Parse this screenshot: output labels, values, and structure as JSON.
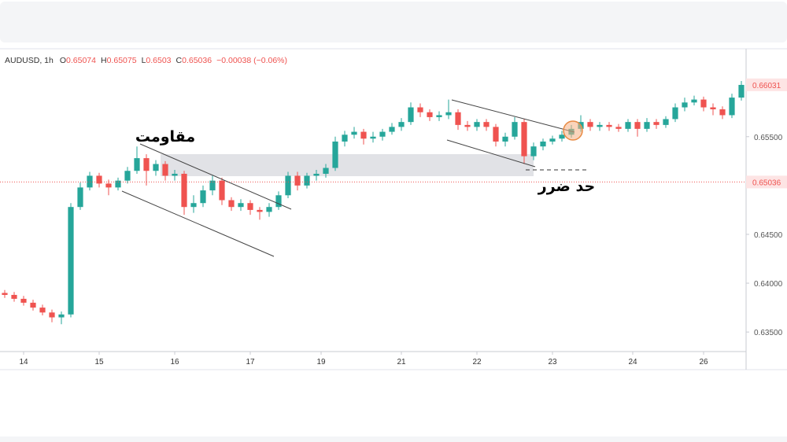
{
  "chart_data": {
    "type": "candlestick",
    "symbol": "AUDUSD, 1h",
    "ohlc_legend": [
      {
        "label": "O",
        "value": 0.65074
      },
      {
        "label": "H",
        "value": 0.65075
      },
      {
        "label": "L",
        "value": 0.6503
      },
      {
        "label": "C",
        "value": 0.65036
      }
    ],
    "change": "−0.00038 (−0.06%)",
    "up_color": "#26a69a",
    "down_color": "#ef5350",
    "open": [
      0.639,
      0.6388,
      0.6384,
      0.638,
      0.6375,
      0.637,
      0.6365,
      0.6368,
      0.6478,
      0.6498,
      0.651,
      0.6502,
      0.6498,
      0.6505,
      0.6515,
      0.6528,
      0.6515,
      0.6522,
      0.651,
      0.6512,
      0.6478,
      0.6482,
      0.6495,
      0.6505,
      0.6485,
      0.6478,
      0.6482,
      0.6475,
      0.6473,
      0.6478,
      0.649,
      0.651,
      0.65,
      0.651,
      0.6512,
      0.6518,
      0.6545,
      0.6552,
      0.6555,
      0.6548,
      0.655,
      0.6555,
      0.656,
      0.6565,
      0.658,
      0.6575,
      0.657,
      0.6572,
      0.6575,
      0.6562,
      0.656,
      0.6565,
      0.656,
      0.6545,
      0.655,
      0.6565,
      0.653,
      0.654,
      0.6545,
      0.6548,
      0.6552,
      0.6558,
      0.6565,
      0.656,
      0.6562,
      0.656,
      0.6558,
      0.6565,
      0.6558,
      0.6565,
      0.6562,
      0.6568,
      0.658,
      0.6585,
      0.6588,
      0.658,
      0.6578,
      0.6572,
      0.659
    ],
    "high": [
      0.6393,
      0.6391,
      0.6387,
      0.6383,
      0.6378,
      0.6373,
      0.6371,
      0.6482,
      0.6503,
      0.6514,
      0.6513,
      0.6506,
      0.6508,
      0.6519,
      0.654,
      0.6532,
      0.6526,
      0.6525,
      0.6516,
      0.6515,
      0.649,
      0.65,
      0.651,
      0.6508,
      0.6488,
      0.6486,
      0.6485,
      0.6478,
      0.6482,
      0.6494,
      0.6514,
      0.6514,
      0.6513,
      0.6516,
      0.6522,
      0.655,
      0.6556,
      0.656,
      0.6558,
      0.6555,
      0.6558,
      0.6564,
      0.6569,
      0.6585,
      0.6584,
      0.6578,
      0.6576,
      0.6588,
      0.6578,
      0.6566,
      0.6568,
      0.6568,
      0.6563,
      0.6554,
      0.657,
      0.6568,
      0.6544,
      0.6548,
      0.6551,
      0.6556,
      0.6562,
      0.6572,
      0.6568,
      0.6565,
      0.6565,
      0.6563,
      0.6568,
      0.6568,
      0.6569,
      0.6568,
      0.6571,
      0.6584,
      0.659,
      0.6592,
      0.6591,
      0.6584,
      0.6581,
      0.6594,
      0.6607
    ],
    "low": [
      0.6385,
      0.6381,
      0.6377,
      0.6372,
      0.6367,
      0.636,
      0.6358,
      0.6365,
      0.6475,
      0.6495,
      0.6498,
      0.649,
      0.6495,
      0.6502,
      0.6512,
      0.65,
      0.651,
      0.6505,
      0.6505,
      0.647,
      0.6472,
      0.6478,
      0.649,
      0.648,
      0.6474,
      0.6474,
      0.647,
      0.6465,
      0.6468,
      0.6475,
      0.6487,
      0.6495,
      0.6497,
      0.6505,
      0.6508,
      0.6515,
      0.654,
      0.6548,
      0.6542,
      0.6544,
      0.6546,
      0.6552,
      0.6556,
      0.6562,
      0.657,
      0.6566,
      0.6566,
      0.6568,
      0.6557,
      0.6556,
      0.6556,
      0.6556,
      0.654,
      0.654,
      0.6547,
      0.6522,
      0.6526,
      0.6536,
      0.6542,
      0.6545,
      0.6549,
      0.6555,
      0.6556,
      0.6556,
      0.6556,
      0.6555,
      0.6555,
      0.655,
      0.6555,
      0.6558,
      0.6559,
      0.6565,
      0.6576,
      0.6582,
      0.6576,
      0.6572,
      0.6568,
      0.6569,
      0.6587
    ],
    "close": [
      0.6388,
      0.6384,
      0.638,
      0.6375,
      0.637,
      0.6365,
      0.6368,
      0.6478,
      0.6498,
      0.651,
      0.6502,
      0.6498,
      0.6505,
      0.6515,
      0.6528,
      0.6515,
      0.6522,
      0.651,
      0.6512,
      0.6478,
      0.6482,
      0.6495,
      0.6505,
      0.6485,
      0.6478,
      0.6482,
      0.6475,
      0.6473,
      0.6478,
      0.649,
      0.651,
      0.65,
      0.651,
      0.6512,
      0.6518,
      0.6545,
      0.6552,
      0.6555,
      0.6548,
      0.655,
      0.6555,
      0.656,
      0.6565,
      0.658,
      0.6575,
      0.657,
      0.6572,
      0.6575,
      0.6562,
      0.656,
      0.6565,
      0.656,
      0.6545,
      0.655,
      0.6565,
      0.653,
      0.654,
      0.6545,
      0.6548,
      0.6552,
      0.6558,
      0.6565,
      0.656,
      0.6562,
      0.656,
      0.6558,
      0.6565,
      0.6558,
      0.6565,
      0.6562,
      0.6568,
      0.658,
      0.6585,
      0.6588,
      0.658,
      0.6578,
      0.6572,
      0.659,
      0.6603
    ],
    "xlim": [
      -0.5,
      78.5
    ],
    "xticks": [
      {
        "value": 2,
        "label": "14"
      },
      {
        "value": 10,
        "label": "15"
      },
      {
        "value": 18,
        "label": "16"
      },
      {
        "value": 26,
        "label": "17"
      },
      {
        "value": 33.5,
        "label": "19"
      },
      {
        "value": 42,
        "label": "21"
      },
      {
        "value": 50,
        "label": "22"
      },
      {
        "value": 58,
        "label": "23"
      },
      {
        "value": 66.5,
        "label": "24"
      },
      {
        "value": 74,
        "label": "26"
      }
    ],
    "ylim": [
      0.633,
      0.664
    ],
    "yticks": [
      {
        "value": 0.635,
        "label": "0.63500"
      },
      {
        "value": 0.64,
        "label": "0.64000"
      },
      {
        "value": 0.645,
        "label": "0.64500"
      },
      {
        "value": 0.655,
        "label": "0.65500"
      }
    ],
    "last_price": 0.66031,
    "price_line": 0.65036,
    "annotations": [
      "مقاومت",
      "حد ضرر"
    ]
  }
}
